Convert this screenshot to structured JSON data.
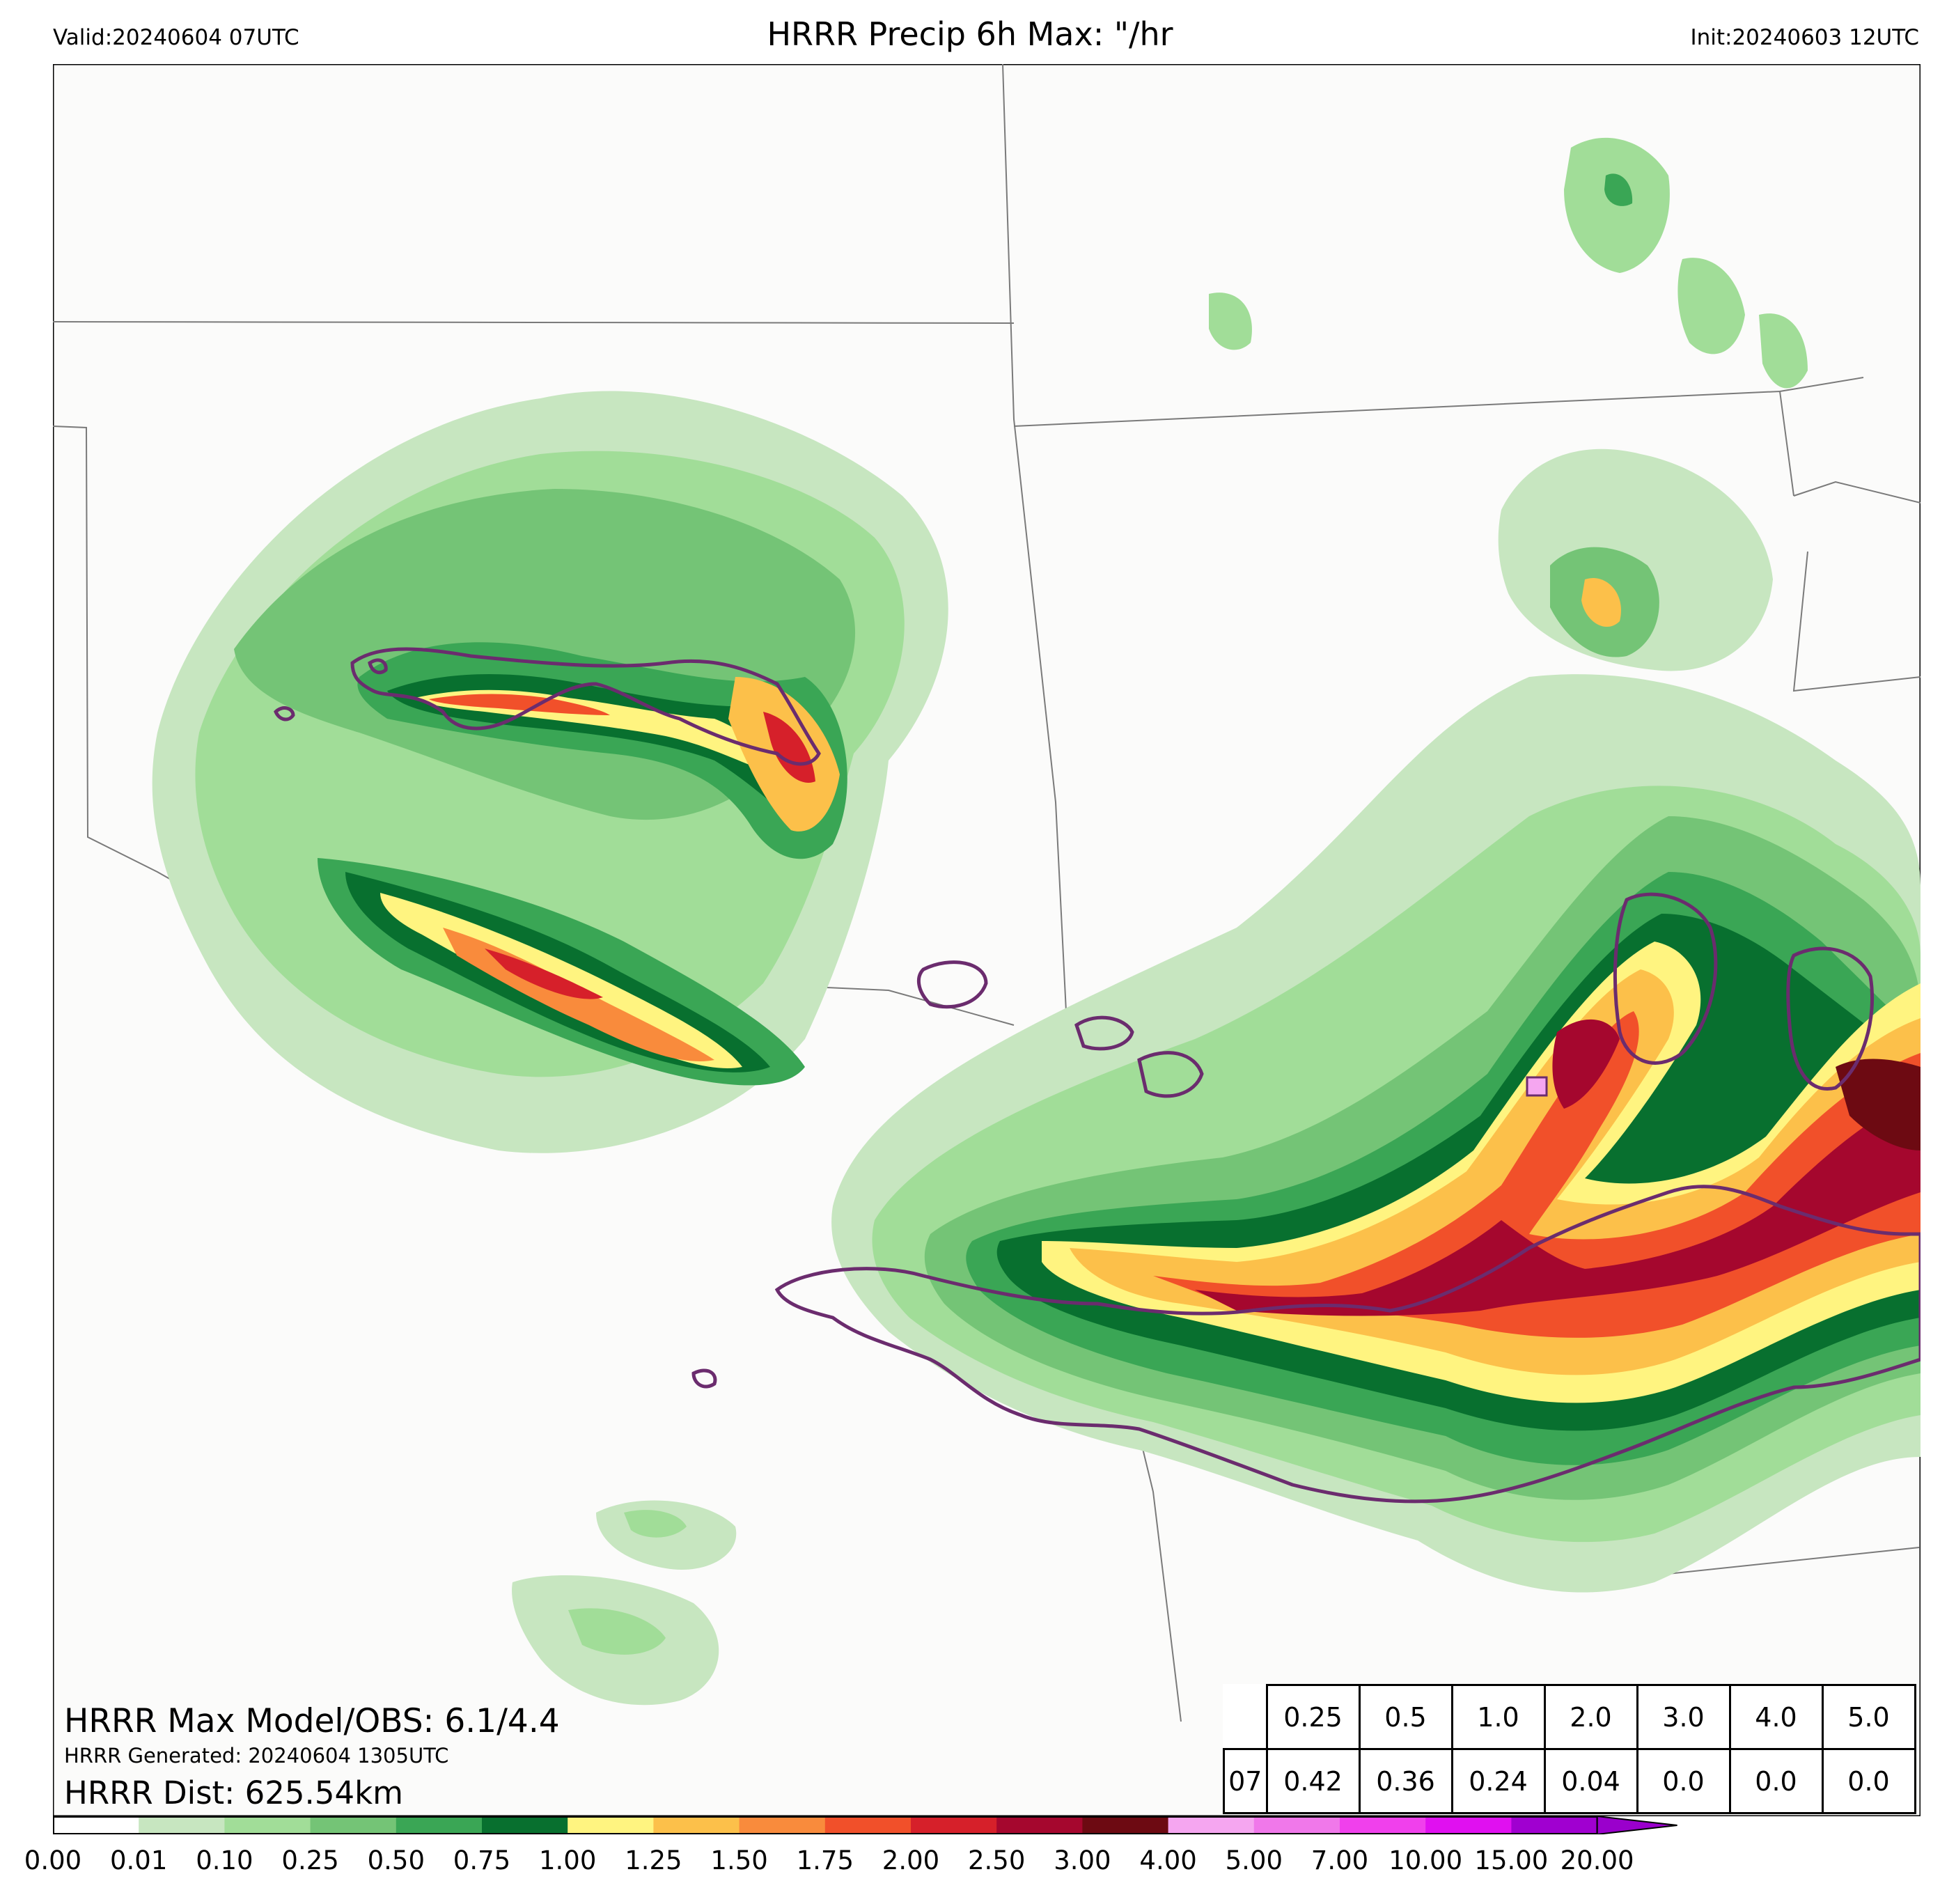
{
  "header": {
    "valid": "Valid:20240604 07UTC",
    "title": "HRRR Precip 6h Max: \"/hr",
    "init": "Init:20240603 12UTC"
  },
  "overlay": {
    "max_model_obs": "HRRR Max Model/OBS: 6.1/4.4",
    "generated": "HRRR Generated: 20240604 1305UTC",
    "dist": "HRRR Dist: 625.54km"
  },
  "stats_table": {
    "thresholds": [
      "0.25",
      "0.5",
      "1.0",
      "2.0",
      "3.0",
      "4.0",
      "5.0"
    ],
    "row_label": "07",
    "values": [
      "0.42",
      "0.36",
      "0.24",
      "0.04",
      "0.0",
      "0.0",
      "0.0"
    ]
  },
  "colorbar": {
    "ticks": [
      "0.00",
      "0.01",
      "0.10",
      "0.25",
      "0.50",
      "0.75",
      "1.00",
      "1.25",
      "1.50",
      "1.75",
      "2.00",
      "2.50",
      "3.00",
      "4.00",
      "5.00",
      "7.00",
      "10.00",
      "15.00",
      "20.00"
    ],
    "colors": [
      "#ffffff",
      "#c7e6c0",
      "#a1dd98",
      "#74c476",
      "#3aa655",
      "#08702f",
      "#fff480",
      "#fcc04a",
      "#f98b3c",
      "#f1502a",
      "#d6202a",
      "#a5072e",
      "#6d0a12",
      "#f5a6f0",
      "#f078ea",
      "#f040ec",
      "#e010f0",
      "#a000d0"
    ],
    "extend_color": "#9a00cc"
  },
  "map_colors": {
    "background": "#fbfbfa",
    "state_lines": "#7a7a7a",
    "obs_contour": "#6b2c6e"
  }
}
